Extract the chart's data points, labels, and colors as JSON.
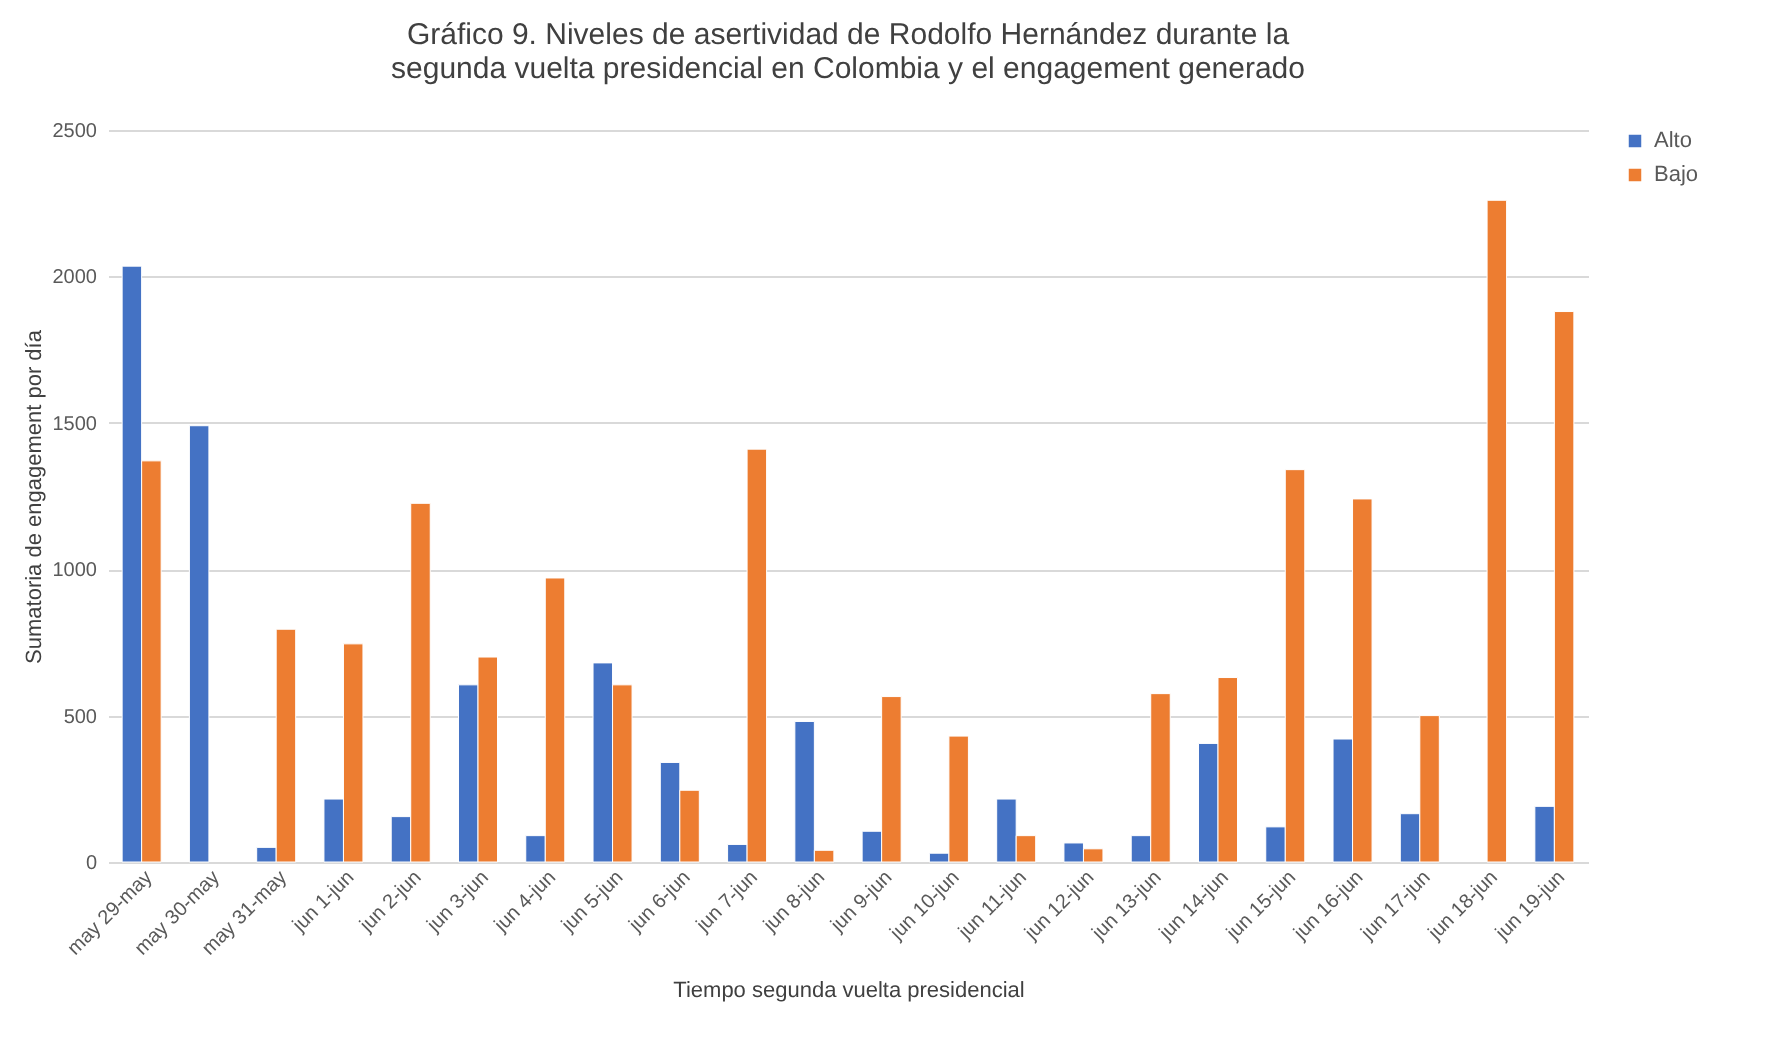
{
  "chart_data": {
    "type": "bar",
    "title": "Gráfico 9. Niveles de asertividad de Rodolfo Hernández durante la segunda vuelta presidencial en Colombia y el engagement generado",
    "xlabel": "Tiempo segunda vuelta presidencial",
    "ylabel": "Sumatoria de engagement por día",
    "categories": [
      "may 29-may",
      "may 30-may",
      "may 31-may",
      "jun 1-jun",
      "jun 2-jun",
      "jun 3-jun",
      "jun 4-jun",
      "jun 5-jun",
      "jun 6-jun",
      "jun 7-jun",
      "jun 8-jun",
      "jun 9-jun",
      "jun 10-jun",
      "jun 11-jun",
      "jun 12-jun",
      "jun 13-jun",
      "jun 14-jun",
      "jun 15-jun",
      "jun 16-jun",
      "jun 17-jun",
      "jun 18-jun",
      "jun 19-jun"
    ],
    "series": [
      {
        "name": "Alto",
        "color": "#4472c4",
        "values": [
          2035,
          1490,
          50,
          215,
          155,
          605,
          90,
          680,
          340,
          60,
          480,
          105,
          30,
          215,
          65,
          90,
          405,
          120,
          420,
          165,
          null,
          190
        ]
      },
      {
        "name": "Bajo",
        "color": "#ed7d31",
        "values": [
          1370,
          null,
          795,
          745,
          1225,
          700,
          970,
          605,
          245,
          1410,
          40,
          565,
          430,
          90,
          45,
          575,
          630,
          1340,
          1240,
          500,
          2260,
          1880
        ]
      }
    ],
    "ylim": [
      0,
      2500
    ],
    "yticks": [
      0,
      500,
      1000,
      1500,
      2000,
      2500
    ],
    "grid": "y",
    "legend": "right"
  }
}
